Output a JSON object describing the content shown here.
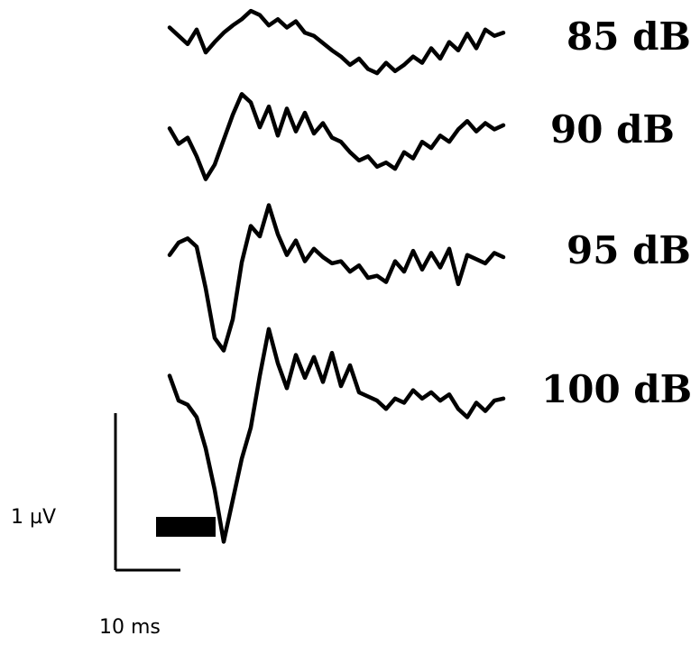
{
  "chart_data": {
    "type": "line",
    "title": "",
    "xlabel": "",
    "ylabel": "",
    "grid": false,
    "x_unit": "ms",
    "y_unit": "µV",
    "x_range_ms": [
      0,
      75
    ],
    "series": [
      {
        "name": "85 dB",
        "points_ms_uv": [
          [
            0,
            0.1
          ],
          [
            2,
            0.02
          ],
          [
            4,
            -0.06
          ],
          [
            6,
            0.08
          ],
          [
            8,
            -0.14
          ],
          [
            10,
            -0.04
          ],
          [
            12,
            0.05
          ],
          [
            14,
            0.12
          ],
          [
            16,
            0.18
          ],
          [
            18,
            0.26
          ],
          [
            20,
            0.22
          ],
          [
            22,
            0.12
          ],
          [
            24,
            0.18
          ],
          [
            26,
            0.1
          ],
          [
            28,
            0.16
          ],
          [
            30,
            0.05
          ],
          [
            32,
            0.02
          ],
          [
            34,
            -0.05
          ],
          [
            36,
            -0.12
          ],
          [
            38,
            -0.18
          ],
          [
            40,
            -0.26
          ],
          [
            42,
            -0.2
          ],
          [
            44,
            -0.3
          ],
          [
            46,
            -0.34
          ],
          [
            48,
            -0.24
          ],
          [
            50,
            -0.32
          ],
          [
            52,
            -0.26
          ],
          [
            54,
            -0.18
          ],
          [
            56,
            -0.24
          ],
          [
            58,
            -0.1
          ],
          [
            60,
            -0.2
          ],
          [
            62,
            -0.04
          ],
          [
            64,
            -0.12
          ],
          [
            66,
            0.04
          ],
          [
            68,
            -0.1
          ],
          [
            70,
            0.08
          ],
          [
            72,
            0.02
          ],
          [
            74,
            0.05
          ]
        ]
      },
      {
        "name": "90 dB",
        "points_ms_uv": [
          [
            0,
            0.05
          ],
          [
            2,
            -0.1
          ],
          [
            4,
            -0.04
          ],
          [
            6,
            -0.22
          ],
          [
            8,
            -0.44
          ],
          [
            10,
            -0.3
          ],
          [
            12,
            -0.06
          ],
          [
            14,
            0.18
          ],
          [
            16,
            0.38
          ],
          [
            18,
            0.3
          ],
          [
            20,
            0.06
          ],
          [
            22,
            0.26
          ],
          [
            24,
            -0.02
          ],
          [
            26,
            0.24
          ],
          [
            28,
            0.02
          ],
          [
            30,
            0.2
          ],
          [
            32,
            0.0
          ],
          [
            34,
            0.1
          ],
          [
            36,
            -0.04
          ],
          [
            38,
            -0.08
          ],
          [
            40,
            -0.18
          ],
          [
            42,
            -0.26
          ],
          [
            44,
            -0.22
          ],
          [
            46,
            -0.32
          ],
          [
            48,
            -0.28
          ],
          [
            50,
            -0.34
          ],
          [
            52,
            -0.18
          ],
          [
            54,
            -0.24
          ],
          [
            56,
            -0.08
          ],
          [
            58,
            -0.14
          ],
          [
            60,
            -0.02
          ],
          [
            62,
            -0.08
          ],
          [
            64,
            0.04
          ],
          [
            66,
            0.12
          ],
          [
            68,
            0.02
          ],
          [
            70,
            0.1
          ],
          [
            72,
            0.04
          ],
          [
            74,
            0.08
          ]
        ]
      },
      {
        "name": "95 dB",
        "points_ms_uv": [
          [
            0,
            0.02
          ],
          [
            2,
            0.14
          ],
          [
            4,
            0.18
          ],
          [
            6,
            0.1
          ],
          [
            8,
            -0.3
          ],
          [
            10,
            -0.78
          ],
          [
            12,
            -0.9
          ],
          [
            14,
            -0.6
          ],
          [
            16,
            -0.05
          ],
          [
            18,
            0.3
          ],
          [
            20,
            0.2
          ],
          [
            22,
            0.5
          ],
          [
            24,
            0.22
          ],
          [
            26,
            0.02
          ],
          [
            28,
            0.16
          ],
          [
            30,
            -0.04
          ],
          [
            32,
            0.08
          ],
          [
            34,
            0.0
          ],
          [
            36,
            -0.06
          ],
          [
            38,
            -0.04
          ],
          [
            40,
            -0.14
          ],
          [
            42,
            -0.08
          ],
          [
            44,
            -0.2
          ],
          [
            46,
            -0.18
          ],
          [
            48,
            -0.24
          ],
          [
            50,
            -0.04
          ],
          [
            52,
            -0.14
          ],
          [
            54,
            0.06
          ],
          [
            56,
            -0.12
          ],
          [
            58,
            0.04
          ],
          [
            60,
            -0.1
          ],
          [
            62,
            0.08
          ],
          [
            64,
            -0.26
          ],
          [
            66,
            0.02
          ],
          [
            68,
            -0.02
          ],
          [
            70,
            -0.06
          ],
          [
            72,
            0.04
          ],
          [
            74,
            0.0
          ]
        ]
      },
      {
        "name": "100 dB",
        "points_ms_uv": [
          [
            0,
            0.1
          ],
          [
            2,
            -0.14
          ],
          [
            4,
            -0.18
          ],
          [
            6,
            -0.3
          ],
          [
            8,
            -0.6
          ],
          [
            10,
            -1.0
          ],
          [
            12,
            -1.5
          ],
          [
            14,
            -1.1
          ],
          [
            16,
            -0.7
          ],
          [
            18,
            -0.4
          ],
          [
            20,
            0.1
          ],
          [
            22,
            0.55
          ],
          [
            24,
            0.22
          ],
          [
            26,
            -0.02
          ],
          [
            28,
            0.3
          ],
          [
            30,
            0.08
          ],
          [
            32,
            0.28
          ],
          [
            34,
            0.04
          ],
          [
            36,
            0.32
          ],
          [
            38,
            0.0
          ],
          [
            40,
            0.2
          ],
          [
            42,
            -0.06
          ],
          [
            44,
            -0.1
          ],
          [
            46,
            -0.14
          ],
          [
            48,
            -0.22
          ],
          [
            50,
            -0.12
          ],
          [
            52,
            -0.16
          ],
          [
            54,
            -0.04
          ],
          [
            56,
            -0.12
          ],
          [
            58,
            -0.06
          ],
          [
            60,
            -0.14
          ],
          [
            62,
            -0.08
          ],
          [
            64,
            -0.22
          ],
          [
            66,
            -0.3
          ],
          [
            68,
            -0.16
          ],
          [
            70,
            -0.24
          ],
          [
            72,
            -0.14
          ],
          [
            74,
            -0.12
          ]
        ]
      }
    ],
    "stimulus_bar_ms": [
      0,
      10
    ],
    "scale_bar": {
      "amplitude_uv": 1,
      "time_ms": 10,
      "amplitude_label": "1 µV",
      "time_label": "10 ms"
    }
  }
}
